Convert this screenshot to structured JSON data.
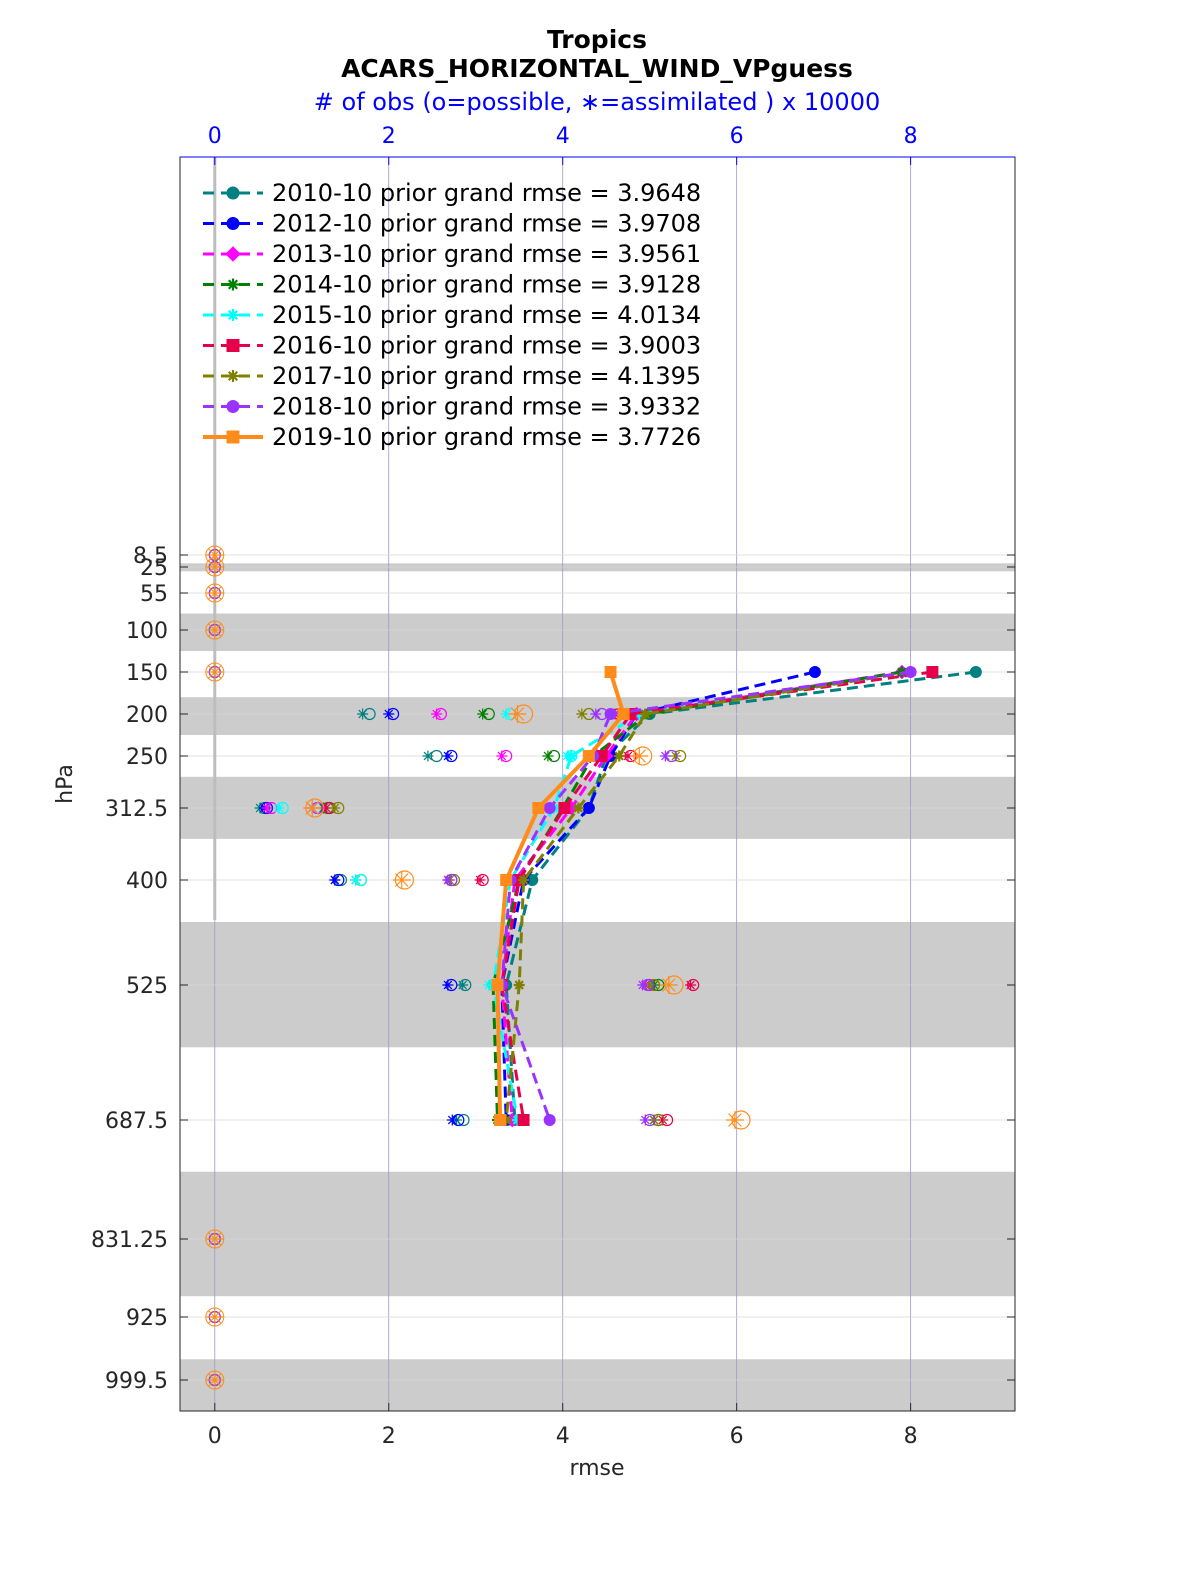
{
  "chart_data": {
    "type": "line",
    "region": "Tropics",
    "title": "ACARS_HORIZONTAL_WIND_VPguess",
    "top_axis_label": "# of obs (o=possible, ∗=assimilated ) x 10000",
    "xlabel": "rmse",
    "ylabel": "hPa",
    "xlim": [
      -0.4,
      9.2
    ],
    "x_ticks": [
      "0",
      "2",
      "4",
      "6",
      "8"
    ],
    "top_ticks": [
      "0",
      "2",
      "4",
      "6",
      "8"
    ],
    "top_xlim": [
      -0.4,
      9.2
    ],
    "y_levels": [
      8.5,
      25,
      55,
      100,
      150,
      200,
      250,
      312.5,
      400,
      525,
      687.5,
      831.25,
      925,
      999.5
    ],
    "y_tick_labels": [
      "8.5",
      "25",
      "55",
      "100",
      "150",
      "200",
      "250",
      "312.5",
      "400",
      "525",
      "687.5",
      "831.25",
      "925",
      "999.5"
    ],
    "shaded_bands": [
      [
        20,
        30
      ],
      [
        80,
        125
      ],
      [
        180,
        225
      ],
      [
        275,
        350
      ],
      [
        450,
        600
      ],
      [
        750,
        900
      ],
      [
        975,
        1025
      ]
    ],
    "series": [
      {
        "name": "2010-10",
        "legend": "2010-10 prior grand rmse = 3.9648",
        "color": "#008080",
        "marker": "circle",
        "dash": true,
        "rmse": [
          [
            8.75,
            150
          ],
          [
            5.0,
            200
          ],
          [
            4.5,
            250
          ],
          [
            4.3,
            312.5
          ],
          [
            3.65,
            400
          ],
          [
            3.35,
            525
          ],
          [
            3.45,
            687.5
          ]
        ],
        "obs_possible": [
          [
            1.78,
            200
          ],
          [
            2.55,
            250
          ],
          [
            0.57,
            312.5
          ],
          [
            1.45,
            400
          ],
          [
            2.88,
            525
          ],
          [
            2.86,
            687.5
          ]
        ],
        "obs_assimilated": [
          [
            1.7,
            200
          ],
          [
            2.45,
            250
          ],
          [
            0.52,
            312.5
          ],
          [
            1.38,
            400
          ],
          [
            2.85,
            525
          ],
          [
            2.78,
            687.5
          ]
        ]
      },
      {
        "name": "2012-10",
        "legend": "2012-10 prior grand rmse = 3.9708",
        "color": "#0000ff",
        "marker": "circle",
        "dash": true,
        "rmse": [
          [
            6.9,
            150
          ],
          [
            4.85,
            200
          ],
          [
            4.55,
            250
          ],
          [
            4.3,
            312.5
          ],
          [
            3.55,
            400
          ],
          [
            3.3,
            525
          ],
          [
            3.35,
            687.5
          ]
        ],
        "obs_possible": [
          [
            2.05,
            200
          ],
          [
            2.72,
            250
          ],
          [
            0.6,
            312.5
          ],
          [
            1.42,
            400
          ],
          [
            2.72,
            525
          ],
          [
            2.8,
            687.5
          ]
        ],
        "obs_assimilated": [
          [
            2.0,
            200
          ],
          [
            2.68,
            250
          ],
          [
            0.57,
            312.5
          ],
          [
            1.38,
            400
          ],
          [
            2.68,
            525
          ],
          [
            2.73,
            687.5
          ]
        ]
      },
      {
        "name": "2013-10",
        "legend": "2013-10 prior grand rmse = 3.9561",
        "color": "#ff00ff",
        "marker": "diamond",
        "dash": true,
        "rmse": [
          [
            7.9,
            150
          ],
          [
            4.85,
            200
          ],
          [
            4.5,
            250
          ],
          [
            4.1,
            312.5
          ],
          [
            3.45,
            400
          ],
          [
            3.3,
            525
          ],
          [
            3.42,
            687.5
          ]
        ],
        "obs_possible": [
          [
            2.6,
            200
          ],
          [
            3.35,
            250
          ],
          [
            0.65,
            312.5
          ],
          [
            2.72,
            400
          ],
          [
            5.0,
            525
          ],
          [
            5.1,
            687.5
          ]
        ],
        "obs_assimilated": [
          [
            2.55,
            200
          ],
          [
            3.3,
            250
          ],
          [
            0.6,
            312.5
          ],
          [
            2.68,
            400
          ],
          [
            4.95,
            525
          ],
          [
            5.05,
            687.5
          ]
        ]
      },
      {
        "name": "2014-10",
        "legend": "2014-10 prior grand rmse = 3.9128",
        "color": "#008000",
        "marker": "star",
        "dash": true,
        "rmse": [
          [
            7.9,
            150
          ],
          [
            4.98,
            200
          ],
          [
            4.35,
            250
          ],
          [
            4.0,
            312.5
          ],
          [
            3.5,
            400
          ],
          [
            3.2,
            525
          ],
          [
            3.25,
            687.5
          ]
        ],
        "obs_possible": [
          [
            3.15,
            200
          ],
          [
            3.9,
            250
          ],
          [
            1.3,
            312.5
          ],
          [
            1.68,
            400
          ],
          [
            5.1,
            525
          ],
          [
            5.1,
            687.5
          ]
        ],
        "obs_assimilated": [
          [
            3.08,
            200
          ],
          [
            3.83,
            250
          ],
          [
            1.25,
            312.5
          ],
          [
            1.62,
            400
          ],
          [
            5.05,
            525
          ],
          [
            5.05,
            687.5
          ]
        ]
      },
      {
        "name": "2015-10",
        "legend": "2015-10 prior grand rmse = 4.0134",
        "color": "#00ffff",
        "marker": "star",
        "dash": true,
        "rmse": [
          [
            8.0,
            150
          ],
          [
            4.88,
            200
          ],
          [
            4.1,
            250
          ],
          [
            3.9,
            312.5
          ],
          [
            3.4,
            400
          ],
          [
            3.2,
            525
          ],
          [
            3.48,
            687.5
          ]
        ],
        "obs_possible": [
          [
            3.4,
            200
          ],
          [
            4.1,
            250
          ],
          [
            0.78,
            312.5
          ],
          [
            1.68,
            400
          ],
          [
            3.2,
            525
          ],
          [
            3.4,
            687.5
          ]
        ],
        "obs_assimilated": [
          [
            3.35,
            200
          ],
          [
            4.05,
            250
          ],
          [
            0.74,
            312.5
          ],
          [
            1.62,
            400
          ],
          [
            3.15,
            525
          ],
          [
            3.35,
            687.5
          ]
        ]
      },
      {
        "name": "2016-10",
        "legend": "2016-10 prior grand rmse = 3.9003",
        "color": "#e6004c",
        "marker": "square",
        "dash": true,
        "rmse": [
          [
            8.25,
            150
          ],
          [
            4.78,
            200
          ],
          [
            4.45,
            250
          ],
          [
            4.02,
            312.5
          ],
          [
            3.5,
            400
          ],
          [
            3.3,
            525
          ],
          [
            3.55,
            687.5
          ]
        ],
        "obs_possible": [
          [
            4.65,
            200
          ],
          [
            4.78,
            250
          ],
          [
            1.32,
            312.5
          ],
          [
            3.08,
            400
          ],
          [
            5.5,
            525
          ],
          [
            5.2,
            687.5
          ]
        ],
        "obs_assimilated": [
          [
            4.6,
            200
          ],
          [
            4.75,
            250
          ],
          [
            1.28,
            312.5
          ],
          [
            3.05,
            400
          ],
          [
            5.47,
            525
          ],
          [
            5.15,
            687.5
          ]
        ]
      },
      {
        "name": "2017-10",
        "legend": "2017-10 prior grand rmse = 4.1395",
        "color": "#808000",
        "marker": "star",
        "dash": true,
        "rmse": [
          [
            8.0,
            150
          ],
          [
            4.95,
            200
          ],
          [
            4.65,
            250
          ],
          [
            4.18,
            312.5
          ],
          [
            3.55,
            400
          ],
          [
            3.5,
            525
          ],
          [
            3.35,
            687.5
          ]
        ],
        "obs_possible": [
          [
            4.3,
            200
          ],
          [
            5.35,
            250
          ],
          [
            1.42,
            312.5
          ],
          [
            2.75,
            400
          ],
          [
            5.05,
            525
          ],
          [
            5.1,
            687.5
          ]
        ],
        "obs_assimilated": [
          [
            4.22,
            200
          ],
          [
            5.3,
            250
          ],
          [
            1.38,
            312.5
          ],
          [
            2.7,
            400
          ],
          [
            5.0,
            525
          ],
          [
            5.05,
            687.5
          ]
        ]
      },
      {
        "name": "2018-10",
        "legend": "2018-10 prior grand rmse = 3.9332",
        "color": "#9933ff",
        "marker": "circle",
        "dash": true,
        "rmse": [
          [
            8.0,
            150
          ],
          [
            4.55,
            200
          ],
          [
            4.35,
            250
          ],
          [
            3.85,
            312.5
          ],
          [
            3.4,
            400
          ],
          [
            3.3,
            525
          ],
          [
            3.85,
            687.5
          ]
        ],
        "obs_possible": [
          [
            4.45,
            200
          ],
          [
            5.25,
            250
          ],
          [
            1.18,
            312.5
          ],
          [
            2.72,
            400
          ],
          [
            4.98,
            525
          ],
          [
            5.0,
            687.5
          ]
        ],
        "obs_assimilated": [
          [
            4.38,
            200
          ],
          [
            5.18,
            250
          ],
          [
            1.12,
            312.5
          ],
          [
            2.68,
            400
          ],
          [
            4.92,
            525
          ],
          [
            4.95,
            687.5
          ]
        ]
      },
      {
        "name": "2019-10",
        "legend": "2019-10 prior grand rmse = 3.7726",
        "color": "#ff8c1a",
        "marker": "square",
        "dash": false,
        "rmse": [
          [
            4.55,
            150
          ],
          [
            4.7,
            200
          ],
          [
            4.3,
            250
          ],
          [
            3.72,
            312.5
          ],
          [
            3.35,
            400
          ],
          [
            3.25,
            525
          ],
          [
            3.28,
            687.5
          ]
        ],
        "obs_possible": [
          [
            3.55,
            200
          ],
          [
            4.92,
            250
          ],
          [
            1.15,
            312.5
          ],
          [
            2.18,
            400
          ],
          [
            5.28,
            525
          ],
          [
            6.05,
            687.5
          ]
        ],
        "obs_assimilated": [
          [
            3.48,
            200
          ],
          [
            4.88,
            250
          ],
          [
            1.12,
            312.5
          ],
          [
            2.15,
            400
          ],
          [
            5.22,
            525
          ],
          [
            5.98,
            687.5
          ]
        ]
      }
    ],
    "zero_obs_levels": [
      8.5,
      25,
      55,
      100,
      150,
      831.25,
      925,
      999.5
    ]
  }
}
